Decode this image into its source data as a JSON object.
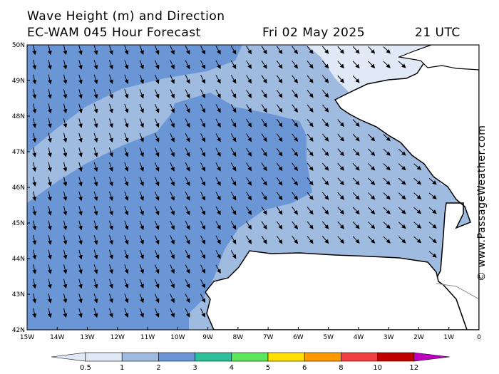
{
  "title_line1": "Wave Height (m) and Direction",
  "title_line2": "EC-WAM 045 Hour Forecast",
  "date": "Fri 02 May 2025",
  "time": "21 UTC",
  "watermark": "© www.PassageWeather.com",
  "map": {
    "lon_range": [
      -15,
      0
    ],
    "lat_range": [
      42,
      50
    ],
    "lon_ticks": [
      "15W",
      "14W",
      "13W",
      "12W",
      "11W",
      "10W",
      "9W",
      "8W",
      "7W",
      "6W",
      "5W",
      "4W",
      "3W",
      "2W",
      "1W",
      "0"
    ],
    "lat_ticks": [
      "50N",
      "49N",
      "48N",
      "47N",
      "46N",
      "45N",
      "44N",
      "43N",
      "42N"
    ]
  },
  "legend": {
    "boundaries": [
      "0.5",
      "1",
      "2",
      "3",
      "4",
      "5",
      "6",
      "8",
      "10",
      "12"
    ],
    "colors": [
      "#e2e9f6",
      "#9fbbe0",
      "#6b96d6",
      "#2fbf9a",
      "#5ce65c",
      "#ffe000",
      "#ff9900",
      "#f04040",
      "#c00000",
      "#c000c0"
    ]
  }
}
